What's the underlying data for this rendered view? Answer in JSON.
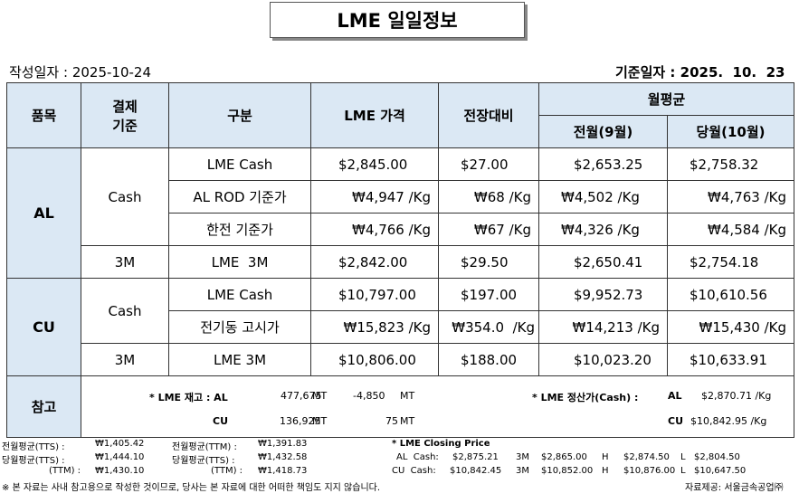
{
  "title": "LME 일일정보",
  "header": {
    "created_label": "작성일자 :",
    "created_date": "2025-10-24",
    "base_label": "기준일자 :",
    "base_date": "2025.  10.  23"
  },
  "table": {
    "headers": {
      "item": "품목",
      "settle_line1": "결제",
      "settle_line2": "기준",
      "category": "구분",
      "lme_price": "LME 가격",
      "change": "전장대비",
      "monthly_avg": "월평균",
      "prev_month": "전월(9월)",
      "this_month": "당월(10월)"
    },
    "al": {
      "item": "AL",
      "cash_label": "Cash",
      "m3_label": "3M",
      "rows": [
        {
          "category": "LME Cash",
          "price": "$2,845.00",
          "change": "$27.00",
          "prev": "$2,653.25",
          "curr": "$2,758.32"
        },
        {
          "category": "AL ROD 기준가",
          "price": "₩4,947 /Kg",
          "change": "₩68 /Kg",
          "prev": "₩4,502 /Kg",
          "curr": "₩4,763 /Kg"
        },
        {
          "category": "한전 기준가",
          "price": "₩4,766 /Kg",
          "change": "₩67 /Kg",
          "prev": "₩4,326 /Kg",
          "curr": "₩4,584 /Kg"
        },
        {
          "category": "LME  3M",
          "price": "$2,842.00",
          "change": "$29.50",
          "prev": "$2,650.41",
          "curr": "$2,754.18"
        }
      ]
    },
    "cu": {
      "item": "CU",
      "cash_label": "Cash",
      "m3_label": "3M",
      "rows": [
        {
          "category": "LME Cash",
          "price": "$10,797.00",
          "change": "$197.00",
          "prev": "$9,952.73",
          "curr": "$10,610.56"
        },
        {
          "category": "전기동 고시가",
          "price": "₩15,823 /Kg",
          "change": "₩354.0  /Kg",
          "prev": "₩14,213 /Kg",
          "curr": "₩15,430 /Kg"
        },
        {
          "category": "LME 3M",
          "price": "$10,806.00",
          "change": "$188.00",
          "prev": "$10,023.20",
          "curr": "$10,633.91"
        }
      ]
    },
    "reference": {
      "label": "참고",
      "stock_title": "* LME 재고 : AL",
      "al_stock": "477,675",
      "al_unit": "MT",
      "al_change": "-4,850",
      "al_change_unit": "MT",
      "cu_label": "CU",
      "cu_stock": "136,925",
      "cu_unit": "MT",
      "cu_change": "75",
      "cu_change_unit": "MT",
      "settle_title": "* LME 정산가(Cash) :",
      "settle_al_label": "AL",
      "settle_al": "$2,870.71 /Kg",
      "settle_cu_label": "CU",
      "settle_cu": "$10,842.95 /Kg"
    }
  },
  "footer": {
    "l1a": "전월평균(TTS) :",
    "l1b": "₩1,405.42",
    "l1c": "전월평균(TTM) :",
    "l1d": "₩1,391.83",
    "l2a": "당월평균(TTS) :",
    "l2b": "₩1,444.10",
    "l2c": "당월평균(TTS) :",
    "l2d": "₩1,432.58",
    "l3a": "(TTM) :",
    "l3b": "₩1,430.10",
    "l3c": "(TTM) :",
    "l3d": "₩1,418.73",
    "closing_title": "* LME Closing Price",
    "al_label": "AL  Cash:",
    "al_cash": "$2,875.21",
    "al_3m_label": "3M",
    "al_3m": "$2,865.00",
    "al_h_label": "H",
    "al_h": "$2,874.50",
    "al_l_label": "L",
    "al_l": "$2,804.50",
    "cu_label": "CU  Cash:",
    "cu_cash": "$10,842.45",
    "cu_3m_label": "3M",
    "cu_3m": "$10,852.00",
    "cu_h_label": "H",
    "cu_h": "$10,876.00",
    "cu_l_label": "L",
    "cu_l": "$10,647.50",
    "disclaimer": "※ 본 자료는 사내 참고용으로 작성한 것이므로, 당사는 본 자료에 대한 어떠한 책임도 지지 않습니다.",
    "source": "자료제공: 서울금속공업㈜"
  }
}
